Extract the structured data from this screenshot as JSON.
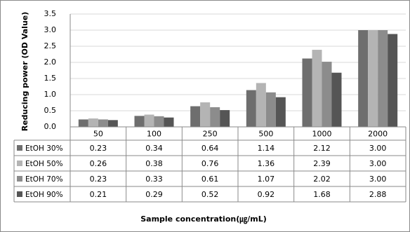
{
  "chart_data": {
    "type": "bar",
    "y_axis_title": "Reducing  power  (OD Value)",
    "x_axis_title": "Sample concentration(㎍/mL)",
    "categories": [
      "50",
      "100",
      "250",
      "500",
      "1000",
      "2000"
    ],
    "series": [
      {
        "name": "EtOH 30%",
        "color": "#6e6e6e",
        "values": [
          0.23,
          0.34,
          0.64,
          1.14,
          2.12,
          3.0
        ],
        "value_labels": [
          "0.23",
          "0.34",
          "0.64",
          "1.14",
          "2.12",
          "3.00"
        ]
      },
      {
        "name": "EtOH 50%",
        "color": "#b4b4b4",
        "values": [
          0.26,
          0.38,
          0.76,
          1.36,
          2.39,
          3.0
        ],
        "value_labels": [
          "0.26",
          "0.38",
          "0.76",
          "1.36",
          "2.39",
          "3.00"
        ]
      },
      {
        "name": "EtOH 70%",
        "color": "#8c8c8c",
        "values": [
          0.23,
          0.33,
          0.61,
          1.07,
          2.02,
          3.0
        ],
        "value_labels": [
          "0.23",
          "0.33",
          "0.61",
          "1.07",
          "2.02",
          "3.00"
        ]
      },
      {
        "name": "EtOH 90%",
        "color": "#555555",
        "values": [
          0.21,
          0.29,
          0.52,
          0.92,
          1.68,
          2.88
        ],
        "value_labels": [
          "0.21",
          "0.29",
          "0.52",
          "0.92",
          "1.68",
          "2.88"
        ]
      }
    ],
    "ylim": [
      0,
      3.5
    ],
    "yticks": [
      {
        "value": 0,
        "label": "0.0"
      },
      {
        "value": 0.5,
        "label": "0.5"
      },
      {
        "value": 1,
        "label": "1.0"
      },
      {
        "value": 1.5,
        "label": "1.5"
      },
      {
        "value": 2,
        "label": "2.0"
      },
      {
        "value": 2.5,
        "label": "2.5"
      },
      {
        "value": 3,
        "label": "3.0"
      },
      {
        "value": 3.5,
        "label": "3.5"
      }
    ],
    "grid": true
  }
}
